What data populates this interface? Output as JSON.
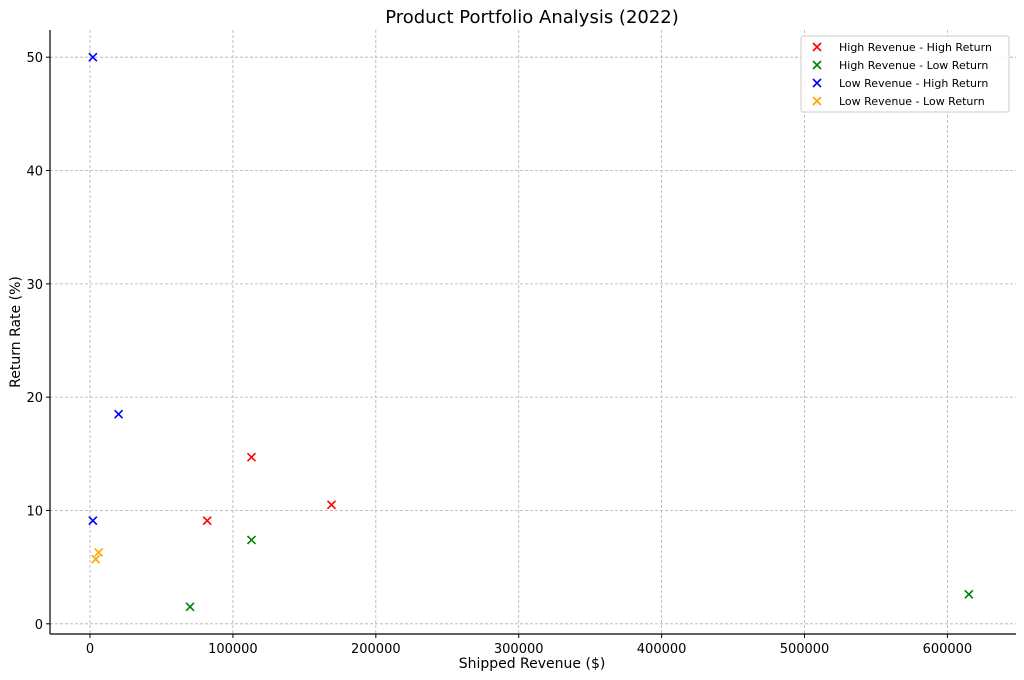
{
  "chart_data": {
    "type": "scatter",
    "title": "Product Portfolio Analysis (2022)",
    "xlabel": "Shipped Revenue ($)",
    "ylabel": "Return Rate (%)",
    "xlim": [
      -28000,
      648000
    ],
    "ylim": [
      -0.9,
      52.4
    ],
    "xticks": [
      0,
      100000,
      200000,
      300000,
      400000,
      500000,
      600000
    ],
    "yticks": [
      0,
      10,
      20,
      30,
      40,
      50
    ],
    "grid": true,
    "legend_position": "top-right",
    "marker": "x",
    "series": [
      {
        "name": "High Revenue - High Return",
        "color": "#ff0000",
        "points": [
          [
            113000,
            14.7
          ],
          [
            82000,
            9.1
          ],
          [
            169000,
            10.5
          ]
        ]
      },
      {
        "name": "High Revenue - Low Return",
        "color": "#008000",
        "points": [
          [
            113000,
            7.4
          ],
          [
            70000,
            1.5
          ],
          [
            615000,
            2.6
          ]
        ]
      },
      {
        "name": "Low Revenue - High Return",
        "color": "#0000ff",
        "points": [
          [
            2000,
            50.0
          ],
          [
            20000,
            18.5
          ],
          [
            2000,
            9.1
          ]
        ]
      },
      {
        "name": "Low Revenue - Low Return",
        "color": "#ffa500",
        "points": [
          [
            6000,
            6.3
          ],
          [
            4000,
            5.7
          ]
        ]
      }
    ]
  }
}
